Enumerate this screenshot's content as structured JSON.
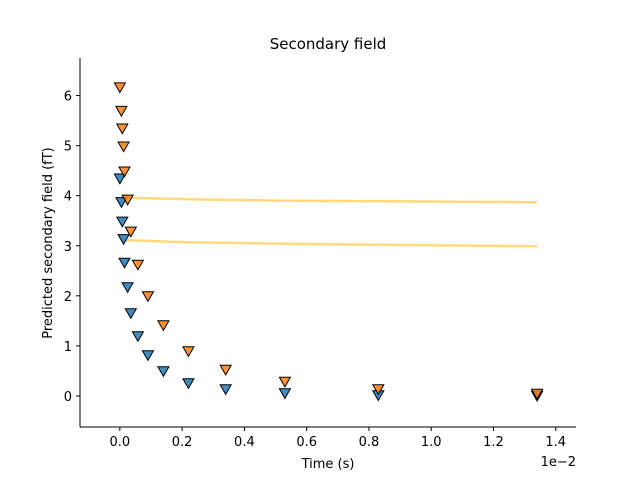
{
  "chart_data": {
    "type": "scatter",
    "title": "Secondary field",
    "xlabel": "Time (s)",
    "ylabel": "Predicted secondary field (fT)",
    "x_offset_label": "1e−2",
    "xlim": [
      -0.00128,
      0.01465
    ],
    "ylim": [
      -0.62,
      6.75
    ],
    "x_ticks": [
      0.0,
      0.002,
      0.004,
      0.006,
      0.008,
      0.01,
      0.012,
      0.014
    ],
    "x_tick_labels": [
      "0.0",
      "0.2",
      "0.4",
      "0.6",
      "0.8",
      "1.0",
      "1.2",
      "1.4"
    ],
    "y_ticks": [
      0,
      1,
      2,
      3,
      4,
      5,
      6
    ],
    "y_tick_labels": [
      "0",
      "1",
      "2",
      "3",
      "4",
      "5",
      "6"
    ],
    "grid": false,
    "series": [
      {
        "marker": "triangle-down",
        "color": "#1f77b4",
        "points": [
          [
            0.0,
            4.35
          ],
          [
            5e-05,
            3.88
          ],
          [
            8e-05,
            3.49
          ],
          [
            0.00012,
            3.14
          ],
          [
            0.00015,
            2.67
          ],
          [
            0.00025,
            2.18
          ],
          [
            0.00035,
            1.66
          ],
          [
            0.00058,
            1.2
          ],
          [
            0.0009,
            0.82
          ],
          [
            0.0014,
            0.5
          ],
          [
            0.0022,
            0.26
          ],
          [
            0.0034,
            0.14
          ],
          [
            0.0053,
            0.06
          ],
          [
            0.0083,
            0.02
          ],
          [
            0.0134,
            0.01
          ]
        ]
      },
      {
        "marker": "triangle-down",
        "color": "#ff7f0e",
        "points": [
          [
            0.0,
            6.17
          ],
          [
            5e-05,
            5.7
          ],
          [
            8e-05,
            5.35
          ],
          [
            0.00012,
            4.99
          ],
          [
            0.00015,
            4.49
          ],
          [
            0.00025,
            3.93
          ],
          [
            0.00035,
            3.29
          ],
          [
            0.00058,
            2.63
          ],
          [
            0.0009,
            2.0
          ],
          [
            0.0014,
            1.42
          ],
          [
            0.0022,
            0.9
          ],
          [
            0.0034,
            0.53
          ],
          [
            0.0053,
            0.29
          ],
          [
            0.0083,
            0.14
          ],
          [
            0.0134,
            0.05
          ]
        ]
      }
    ],
    "lines": [
      {
        "color": "#ffd97d",
        "points": [
          [
            0.0002,
            3.96
          ],
          [
            0.0022,
            3.93
          ],
          [
            0.0053,
            3.9
          ],
          [
            0.0134,
            3.87
          ]
        ]
      },
      {
        "color": "#ffd97d",
        "points": [
          [
            0.0002,
            3.11
          ],
          [
            0.0022,
            3.07
          ],
          [
            0.0053,
            3.04
          ],
          [
            0.0134,
            2.99
          ]
        ]
      }
    ]
  }
}
